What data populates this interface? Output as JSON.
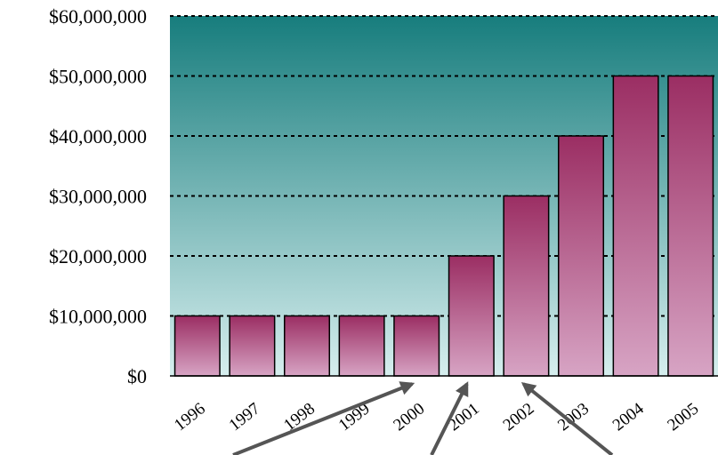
{
  "chart_data": {
    "type": "bar",
    "title": "",
    "xlabel": "",
    "ylabel": "",
    "categories": [
      "1996",
      "1997",
      "1998",
      "1999",
      "2000",
      "2001",
      "2002",
      "2003",
      "2004",
      "2005"
    ],
    "values": [
      10000000,
      10000000,
      10000000,
      10000000,
      10000000,
      20000000,
      30000000,
      40000000,
      50000000,
      50000000
    ],
    "ylim": [
      0,
      60000000
    ],
    "yticks": [
      {
        "value": 0,
        "label": "$0"
      },
      {
        "value": 10000000,
        "label": "$10,000,000"
      },
      {
        "value": 20000000,
        "label": "$20,000,000"
      },
      {
        "value": 30000000,
        "label": "$30,000,000"
      },
      {
        "value": 40000000,
        "label": "$40,000,000"
      },
      {
        "value": 50000000,
        "label": "$50,000,000"
      },
      {
        "value": 60000000,
        "label": "$60,000,000"
      }
    ],
    "grid": "horizontal-dotted",
    "colors": {
      "plot_bg_top": "#177d7d",
      "plot_bg_bottom": "#d6eeee",
      "bar_top": "#9b2e63",
      "bar_bottom": "#d7a4c4",
      "arrow": "#555555"
    },
    "annotations": [
      {
        "type": "arrow",
        "points_to": "2000"
      },
      {
        "type": "arrow",
        "points_to": "2001"
      },
      {
        "type": "arrow",
        "points_to": "2002"
      }
    ]
  }
}
